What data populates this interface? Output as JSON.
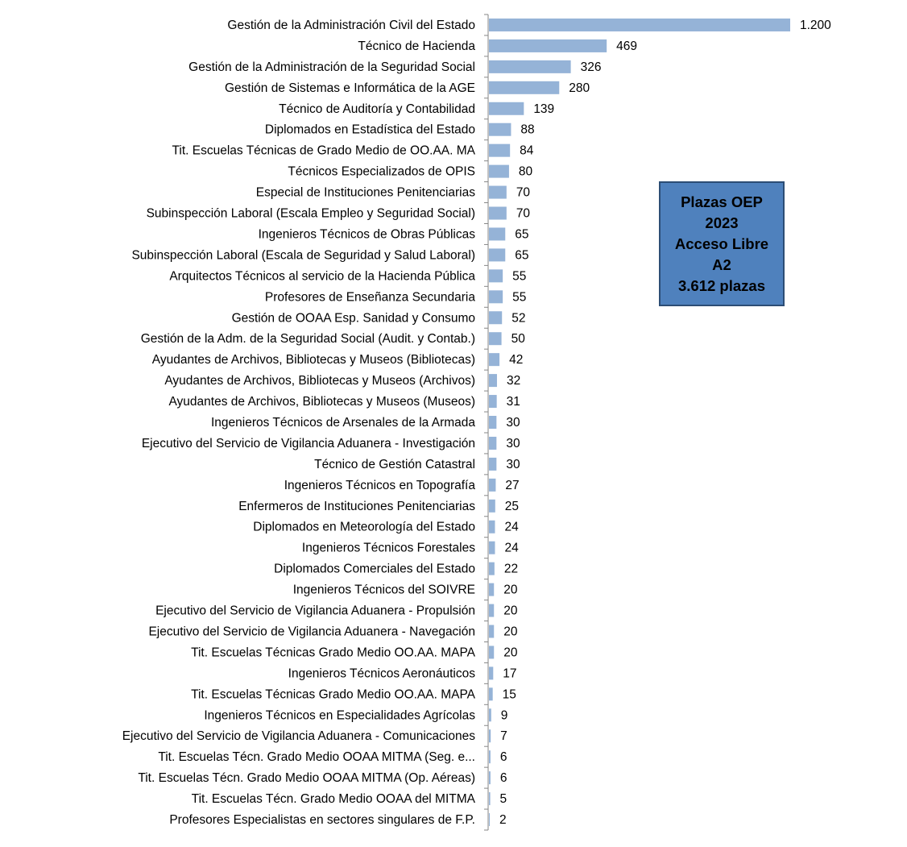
{
  "chart_data": {
    "type": "bar",
    "orientation": "horizontal",
    "categories": [
      "Gestión de la Administración Civil del Estado",
      "Técnico de Hacienda",
      "Gestión de la Administración de la Seguridad Social",
      "Gestión de Sistemas e Informática de la AGE",
      "Técnico de Auditoría y Contabilidad",
      "Diplomados en Estadística del Estado",
      "Tit. Escuelas Técnicas de Grado Medio de OO.AA. MA",
      "Técnicos Especializados de OPIS",
      "Especial de  Instituciones Penitenciarias",
      "Subinspección Laboral (Escala Empleo y Seguridad Social)",
      "Ingenieros Técnicos de Obras Públicas",
      "Subinspección Laboral (Escala de Seguridad y Salud Laboral)",
      "Arquitectos Técnicos al servicio de la Hacienda Pública",
      "Profesores de Enseñanza Secundaria",
      "Gestión de OOAA Esp. Sanidad y Consumo",
      "Gestión de la Adm. de la Seguridad Social (Audit. y Contab.)",
      "Ayudantes de Archivos, Bibliotecas y Museos (Bibliotecas)",
      "Ayudantes de Archivos, Bibliotecas y Museos (Archivos)",
      "Ayudantes de Archivos, Bibliotecas y Museos (Museos)",
      "Ingenieros Técnicos de Arsenales de la Armada",
      "Ejecutivo del Servicio de Vigilancia Aduanera - Investigación",
      "Técnico de Gestión Catastral",
      "Ingenieros Técnicos en Topografía",
      "Enfermeros de Instituciones Penitenciarias",
      "Diplomados en Meteorología del Estado",
      "Ingenieros Técnicos Forestales",
      "Diplomados Comerciales del Estado",
      "Ingenieros Técnicos del SOIVRE",
      "Ejecutivo del Servicio de Vigilancia Aduanera - Propulsión",
      "Ejecutivo del Servicio de Vigilancia Aduanera - Navegación",
      "Tit. Escuelas Técnicas Grado Medio OO.AA. MAPA",
      "Ingenieros Técnicos Aeronáuticos",
      "Tit. Escuelas Técnicas Grado Medio OO.AA. MAPA",
      "Ingenieros Técnicos en Especialidades Agrícolas",
      "Ejecutivo del Servicio de Vigilancia Aduanera - Comunicaciones",
      "Tit. Escuelas Técn. Grado Medio OOAA MITMA (Seg. e...",
      "Tit. Escuelas Técn. Grado Medio OOAA MITMA (Op. Aéreas)",
      "Tit. Escuelas Técn. Grado Medio OOAA del MITMA",
      "Profesores Especialistas en sectores singulares de F.P."
    ],
    "values": [
      1200,
      469,
      326,
      280,
      139,
      88,
      84,
      80,
      70,
      70,
      65,
      65,
      55,
      55,
      52,
      50,
      42,
      32,
      31,
      30,
      30,
      30,
      27,
      25,
      24,
      24,
      22,
      20,
      20,
      20,
      20,
      17,
      15,
      9,
      7,
      6,
      6,
      5,
      2
    ],
    "value_labels": [
      "1.200",
      "469",
      "326",
      "280",
      "139",
      "88",
      "84",
      "80",
      "70",
      "70",
      "65",
      "65",
      "55",
      "55",
      "52",
      "50",
      "42",
      "32",
      "31",
      "30",
      "30",
      "30",
      "27",
      "25",
      "24",
      "24",
      "22",
      "20",
      "20",
      "20",
      "20",
      "17",
      "15",
      "9",
      "7",
      "6",
      "6",
      "5",
      "2"
    ],
    "xlim": [
      0,
      1200
    ],
    "grid": false,
    "legend": "none",
    "bar_color": "#95b3d7",
    "title": "",
    "xlabel": "",
    "ylabel": ""
  },
  "info_box": {
    "line1": "Plazas OEP",
    "line2": "2023",
    "line3": "Acceso Libre",
    "line4": "A2",
    "line5": "3.612 plazas",
    "background": "#4f81bd",
    "border": "#2c4d75"
  }
}
